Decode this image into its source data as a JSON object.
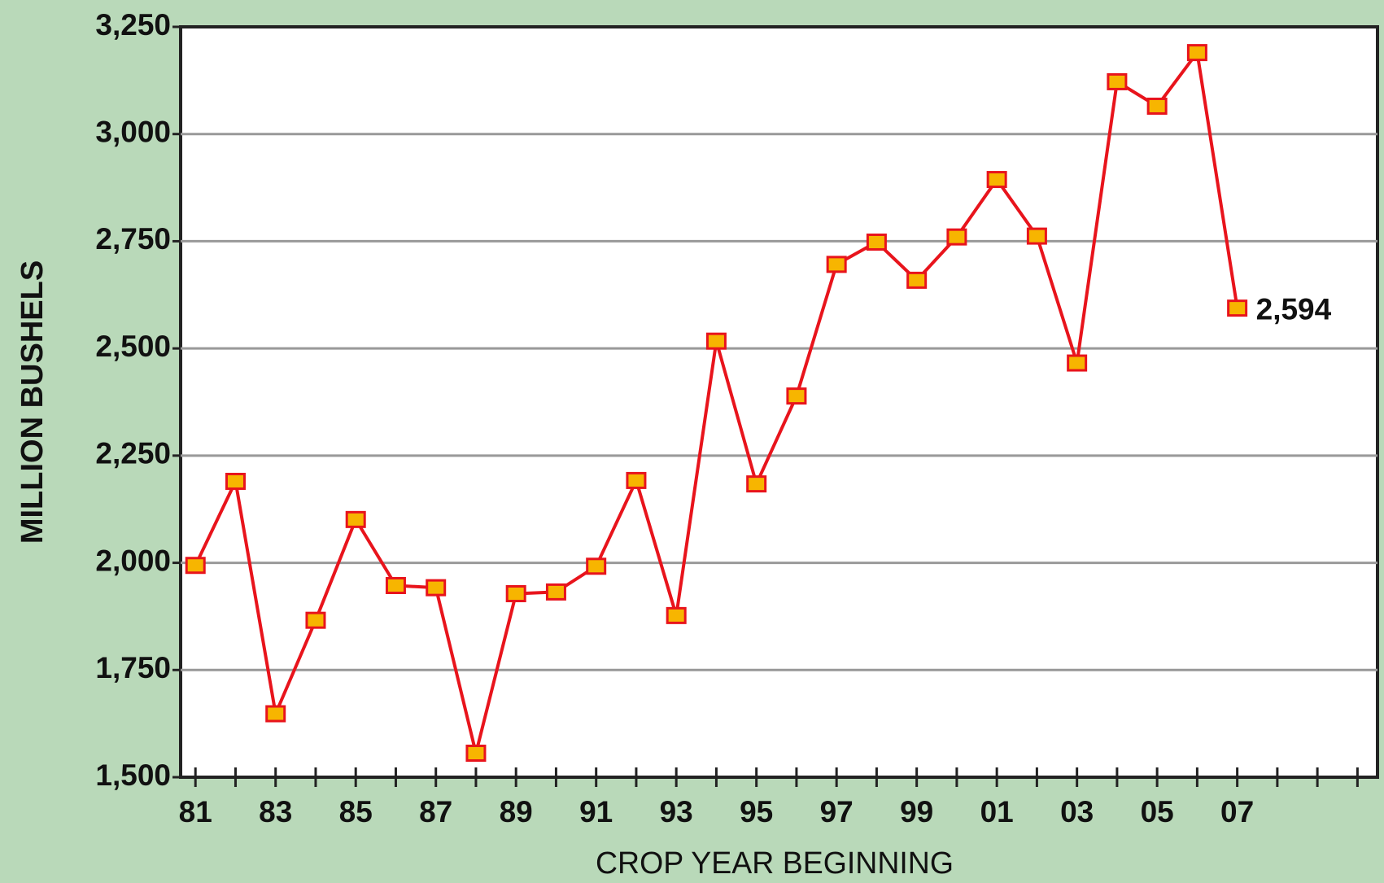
{
  "chart_data": {
    "type": "line",
    "y_label": "MILLION BUSHELS",
    "x_label": "CROP YEAR BEGINNING",
    "categories": [
      "81",
      null,
      "83",
      null,
      "85",
      null,
      "87",
      null,
      "89",
      null,
      "91",
      null,
      "93",
      null,
      "95",
      null,
      "97",
      null,
      "99",
      null,
      "01",
      null,
      "03",
      null,
      "05",
      null,
      "07",
      null,
      null,
      null
    ],
    "series": [
      {
        "color": "#e8141c",
        "marker_color": "#f7b500",
        "values": [
          1994,
          2190,
          1648,
          1866,
          2101,
          1947,
          1942,
          1556,
          1928,
          1932,
          1992,
          2192,
          1877,
          2517,
          2184,
          2389,
          2696,
          2748,
          2659,
          2760,
          2894,
          2762,
          2466,
          3122,
          3065,
          3190,
          2594,
          null,
          null,
          null
        ],
        "value_labels": [
          null,
          null,
          null,
          null,
          null,
          null,
          null,
          null,
          null,
          null,
          null,
          null,
          null,
          null,
          null,
          null,
          null,
          null,
          null,
          null,
          null,
          null,
          null,
          null,
          null,
          null,
          "2,594",
          null,
          null,
          null
        ]
      }
    ],
    "ylim": [
      1500,
      3250
    ],
    "yticks": [
      {
        "value": 1500,
        "label": "1,500"
      },
      {
        "value": 1750,
        "label": "1,750"
      },
      {
        "value": 2000,
        "label": "2,000"
      },
      {
        "value": 2250,
        "label": "2,250"
      },
      {
        "value": 2500,
        "label": "2,500"
      },
      {
        "value": 2750,
        "label": "2,750"
      },
      {
        "value": 3000,
        "label": "3,000"
      },
      {
        "value": 3250,
        "label": "3,250"
      }
    ],
    "grid": true
  }
}
